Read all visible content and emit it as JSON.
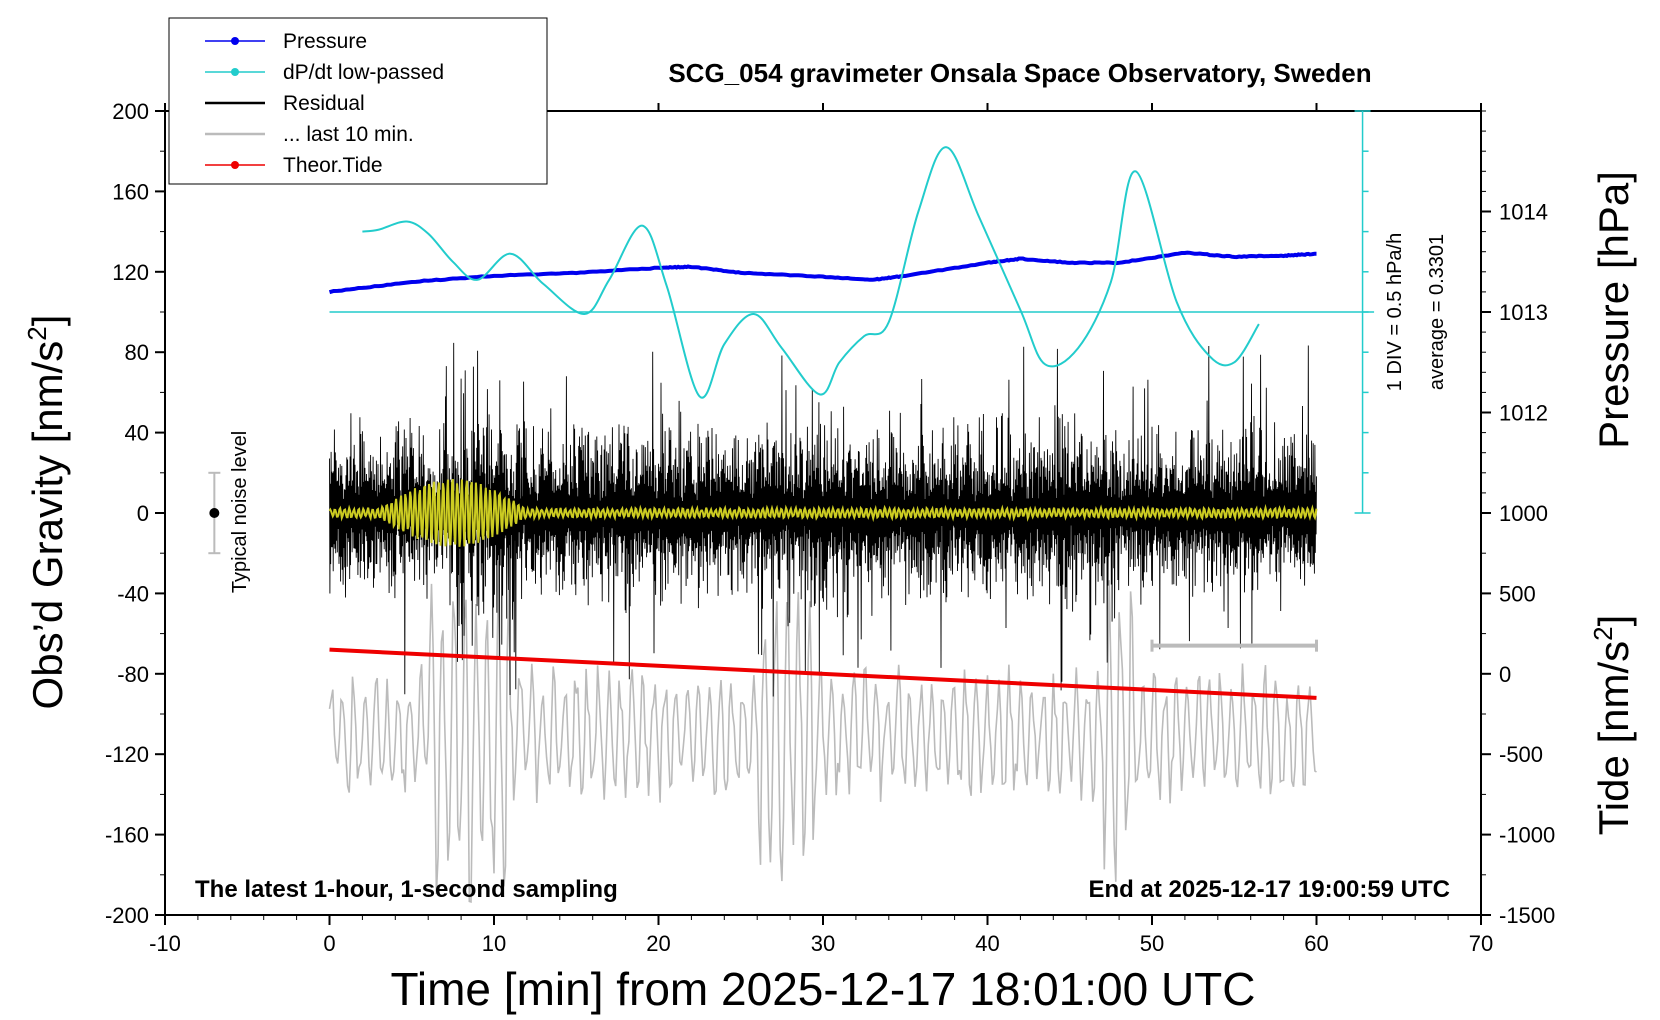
{
  "chart_data": {
    "type": "line",
    "title": "SCG_054 gravimeter Onsala Space Observatory, Sweden",
    "xlabel": "Time [min] from 2025-12-17 18:01:00 UTC",
    "ylabel_left_main": "Obs’d Gravity [nm/s",
    "ylabel_left_sup": "2",
    "ylabel_left_end": "]",
    "ylabel_right_top": "Pressure [hPa]",
    "ylabel_right_bottom_main": "Tide [nm/s",
    "ylabel_right_bottom_sup": "2",
    "ylabel_right_bottom_end": "]",
    "xlim": [
      -10,
      70
    ],
    "ylim": [
      -200,
      200
    ],
    "x_ticks": [
      "-10",
      "0",
      "10",
      "20",
      "30",
      "40",
      "50",
      "60",
      "70"
    ],
    "y_ticks": [
      "200",
      "160",
      "120",
      "80",
      "40",
      "0",
      "-40",
      "-80",
      "-120",
      "-160",
      "-200"
    ],
    "pressure_axis": {
      "ticks": [
        "1014",
        "1013",
        "1012"
      ],
      "values": [
        1014,
        1013,
        1012
      ],
      "range_hpa": [
        1011,
        1015
      ]
    },
    "tide_axis": {
      "ticks": [
        "1000",
        "500",
        "0",
        "-500",
        "-1000",
        "-1500"
      ],
      "values": [
        1000,
        500,
        0,
        -500,
        -1000,
        -1500
      ],
      "range": [
        -1500,
        1000
      ]
    },
    "annotations": {
      "bottom_left": "The latest 1-hour, 1-second sampling",
      "bottom_right": "End at 2025-12-17 19:00:59 UTC",
      "noise": "Typical noise level",
      "div_scale": "1 DIV = 0.5 hPa/h",
      "average": "average = 0.3301"
    },
    "legend_position": "top-left",
    "legend": [
      {
        "label": "Pressure",
        "color": "#0000ee",
        "style": "line-dot"
      },
      {
        "label": "dP/dt low-passed",
        "color": "#22cccc",
        "style": "line-dot"
      },
      {
        "label": "Residual",
        "color": "#000000",
        "style": "line"
      },
      {
        "label": "... last 10 min.",
        "color": "#bbbbbb",
        "style": "line"
      },
      {
        "label": "Theor.Tide",
        "color": "#ee0000",
        "style": "line-dot"
      }
    ],
    "series": [
      {
        "name": "Pressure",
        "unit": "hPa",
        "color": "#0000ee",
        "x": [
          0,
          5,
          10,
          15,
          20,
          22,
          25,
          30,
          33,
          35,
          40,
          42,
          45,
          48,
          52,
          55,
          58,
          60
        ],
        "values": [
          1013.2,
          1013.3,
          1013.36,
          1013.39,
          1013.44,
          1013.45,
          1013.39,
          1013.35,
          1013.32,
          1013.36,
          1013.49,
          1013.53,
          1013.49,
          1013.49,
          1013.59,
          1013.55,
          1013.56,
          1013.58
        ]
      },
      {
        "name": "dP/dt low-passed",
        "color": "#22cccc",
        "x": [
          2,
          3,
          4.7,
          6,
          7.5,
          9,
          11,
          13,
          15.5,
          17,
          19,
          20.5,
          22.5,
          24,
          25.8,
          27.5,
          29.8,
          31,
          32.5,
          34,
          35.8,
          37.5,
          39.5,
          42,
          43.5,
          45.5,
          47.5,
          49,
          51.5,
          53.5,
          55,
          56.5
        ],
        "values": [
          140,
          141,
          145,
          139,
          125,
          116,
          129,
          114,
          99,
          116,
          143,
          113,
          58,
          84,
          99,
          82,
          59,
          75,
          88,
          95,
          150,
          182,
          147,
          101,
          74,
          82,
          115,
          170,
          105,
          78,
          75,
          94
        ]
      },
      {
        "name": "Residual",
        "color": "#000000",
        "x_range": [
          0,
          60
        ],
        "amplitude_typical": 40,
        "amplitude_max": 95,
        "burst_windows_minutes": [
          [
            7,
            12
          ],
          [
            26,
            32
          ],
          [
            44,
            48
          ],
          [
            53,
            57
          ]
        ]
      },
      {
        "name": "low-passed residual",
        "color": "#cccc22",
        "x_range": [
          0,
          60
        ],
        "values_note": "oscillation near 0 with burst of about ±15 between 3 and 12 min",
        "burst_x": [
          3,
          12
        ],
        "burst_amplitude": 15
      },
      {
        "name": "... last 10 min.",
        "color": "#bbbbbb",
        "x_range": [
          0,
          60
        ],
        "amplitude_typical": 28,
        "amplitude_max": 90,
        "offset": -110
      },
      {
        "name": "Theor.Tide",
        "unit": "nm/s2",
        "color": "#ee0000",
        "x": [
          0,
          60
        ],
        "values": [
          150,
          -150
        ]
      },
      {
        "name": "10-minute marker",
        "color": "#bbbbbb",
        "x": [
          50,
          60
        ],
        "values": [
          -66,
          -66
        ]
      },
      {
        "name": "Typical noise level",
        "color": "#bbbbbb",
        "x": [
          -7
        ],
        "values": [
          0
        ],
        "bar": [
          -20,
          20
        ]
      }
    ]
  }
}
